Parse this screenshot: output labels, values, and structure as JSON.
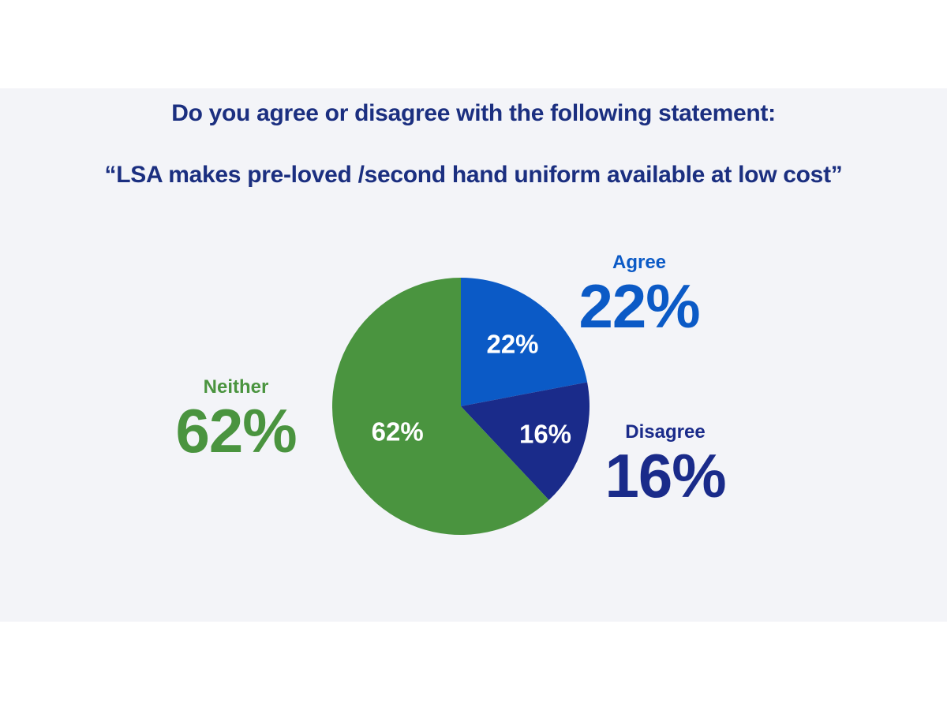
{
  "page": {
    "background": "#ffffff",
    "slide_background": "#f3f4f8"
  },
  "title": {
    "color": "#1b2f80",
    "line1": "Do you agree or disagree with the following statement:",
    "line2": "“LSA makes pre-loved /second hand uniform available at low cost”"
  },
  "chart_data": {
    "type": "pie",
    "title": "Do you agree or disagree with the following statement: “LSA makes pre-loved /second hand uniform available at low cost”",
    "start_angle_deg": 0,
    "direction": "clockwise",
    "inner_label_color": "#ffffff",
    "legend_position": "callouts-around-pie",
    "slices": [
      {
        "label": "Agree",
        "value": 22,
        "display_value": "22%",
        "color": "#0b5ac6"
      },
      {
        "label": "Disagree",
        "value": 16,
        "display_value": "16%",
        "color": "#1a2b8a"
      },
      {
        "label": "Neither",
        "value": 62,
        "display_value": "62%",
        "color": "#4a943f"
      }
    ]
  }
}
